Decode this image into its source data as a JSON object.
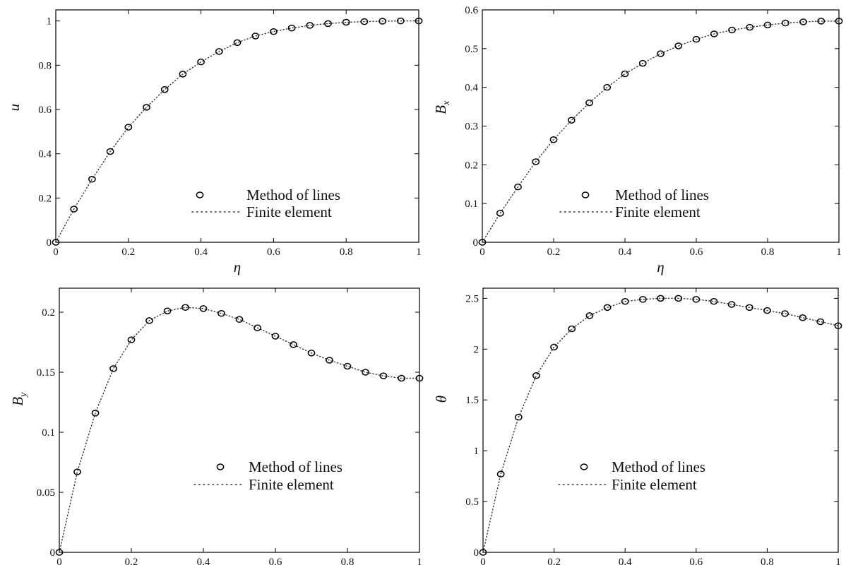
{
  "chart_data": [
    {
      "type": "scatter",
      "panel": "top-left",
      "xlabel": "η",
      "ylabel": "u",
      "xlim": [
        0,
        1
      ],
      "ylim": [
        0,
        1.05
      ],
      "x_ticks": [
        0,
        0.2,
        0.4,
        0.6,
        0.8,
        1
      ],
      "x_tick_labels": [
        "0",
        "0.2",
        "0.4",
        "0.6",
        "0.8",
        "1"
      ],
      "y_ticks": [
        0,
        0.2,
        0.4,
        0.6,
        0.8,
        1
      ],
      "y_tick_labels": [
        "0",
        "0.2",
        "0.4",
        "0.6",
        "0.8",
        "1"
      ],
      "grid": false,
      "legend_position": "bottom-right",
      "series": [
        {
          "name": "Method of lines",
          "marker": "open-circle",
          "x": [
            0,
            0.05,
            0.1,
            0.15,
            0.2,
            0.25,
            0.3,
            0.35,
            0.4,
            0.45,
            0.5,
            0.55,
            0.6,
            0.65,
            0.7,
            0.75,
            0.8,
            0.85,
            0.9,
            0.95,
            1
          ],
          "y": [
            0,
            0.15,
            0.285,
            0.41,
            0.52,
            0.61,
            0.69,
            0.76,
            0.815,
            0.862,
            0.902,
            0.932,
            0.952,
            0.968,
            0.98,
            0.988,
            0.994,
            0.997,
            0.999,
            1.0,
            1.0
          ]
        },
        {
          "name": "Finite element",
          "line": "dotted",
          "x": [
            0,
            0.05,
            0.1,
            0.15,
            0.2,
            0.25,
            0.3,
            0.35,
            0.4,
            0.45,
            0.5,
            0.55,
            0.6,
            0.65,
            0.7,
            0.75,
            0.8,
            0.85,
            0.9,
            0.95,
            1
          ],
          "y": [
            0,
            0.15,
            0.285,
            0.41,
            0.52,
            0.61,
            0.69,
            0.76,
            0.815,
            0.862,
            0.902,
            0.932,
            0.952,
            0.968,
            0.98,
            0.988,
            0.994,
            0.997,
            0.999,
            1.0,
            1.0
          ]
        }
      ]
    },
    {
      "type": "scatter",
      "panel": "top-right",
      "xlabel": "η",
      "ylabel": "Bₓ",
      "xlim": [
        0,
        1
      ],
      "ylim": [
        0,
        0.6
      ],
      "x_ticks": [
        0,
        0.2,
        0.4,
        0.6,
        0.8,
        1
      ],
      "x_tick_labels": [
        "0",
        "0.2",
        "0.4",
        "0.6",
        "0.8",
        "1"
      ],
      "y_ticks": [
        0,
        0.1,
        0.2,
        0.3,
        0.4,
        0.5,
        0.6
      ],
      "y_tick_labels": [
        "0",
        "0.1",
        "0.2",
        "0.3",
        "0.4",
        "0.5",
        "0.6"
      ],
      "grid": false,
      "legend_position": "bottom-right",
      "series": [
        {
          "name": "Method of lines",
          "marker": "open-circle",
          "x": [
            0,
            0.05,
            0.1,
            0.15,
            0.2,
            0.25,
            0.3,
            0.35,
            0.4,
            0.45,
            0.5,
            0.55,
            0.6,
            0.65,
            0.7,
            0.75,
            0.8,
            0.85,
            0.9,
            0.95,
            1
          ],
          "y": [
            0,
            0.075,
            0.143,
            0.208,
            0.265,
            0.315,
            0.36,
            0.4,
            0.435,
            0.462,
            0.487,
            0.507,
            0.524,
            0.538,
            0.548,
            0.555,
            0.561,
            0.566,
            0.569,
            0.571,
            0.571
          ]
        },
        {
          "name": "Finite element",
          "line": "dotted",
          "x": [
            0,
            0.05,
            0.1,
            0.15,
            0.2,
            0.25,
            0.3,
            0.35,
            0.4,
            0.45,
            0.5,
            0.55,
            0.6,
            0.65,
            0.7,
            0.75,
            0.8,
            0.85,
            0.9,
            0.95,
            1
          ],
          "y": [
            0,
            0.075,
            0.143,
            0.208,
            0.265,
            0.315,
            0.36,
            0.4,
            0.435,
            0.462,
            0.487,
            0.507,
            0.524,
            0.538,
            0.548,
            0.555,
            0.561,
            0.566,
            0.569,
            0.571,
            0.571
          ]
        }
      ]
    },
    {
      "type": "scatter",
      "panel": "bottom-left",
      "xlabel": "η",
      "ylabel": "By",
      "xlim": [
        0,
        1
      ],
      "ylim": [
        0,
        0.22
      ],
      "x_ticks": [
        0,
        0.2,
        0.4,
        0.6,
        0.8,
        1
      ],
      "x_tick_labels": [
        "0",
        "0.2",
        "0.4",
        "0.6",
        "0.8",
        "1"
      ],
      "y_ticks": [
        0,
        0.05,
        0.1,
        0.15,
        0.2
      ],
      "y_tick_labels": [
        "0",
        "0.05",
        "0.1",
        "0.15",
        "0.2"
      ],
      "grid": false,
      "legend_position": "bottom-right",
      "series": [
        {
          "name": "Method of lines",
          "marker": "open-circle",
          "x": [
            0,
            0.05,
            0.1,
            0.15,
            0.2,
            0.25,
            0.3,
            0.35,
            0.4,
            0.45,
            0.5,
            0.55,
            0.6,
            0.65,
            0.7,
            0.75,
            0.8,
            0.85,
            0.9,
            0.95,
            1
          ],
          "y": [
            0,
            0.067,
            0.116,
            0.153,
            0.177,
            0.193,
            0.201,
            0.204,
            0.203,
            0.199,
            0.194,
            0.187,
            0.18,
            0.173,
            0.166,
            0.16,
            0.155,
            0.15,
            0.147,
            0.145,
            0.145
          ]
        },
        {
          "name": "Finite element",
          "line": "dotted",
          "x": [
            0,
            0.05,
            0.1,
            0.15,
            0.2,
            0.25,
            0.3,
            0.35,
            0.4,
            0.45,
            0.5,
            0.55,
            0.6,
            0.65,
            0.7,
            0.75,
            0.8,
            0.85,
            0.9,
            0.95,
            1
          ],
          "y": [
            0,
            0.067,
            0.116,
            0.153,
            0.177,
            0.193,
            0.201,
            0.204,
            0.203,
            0.199,
            0.194,
            0.187,
            0.18,
            0.173,
            0.166,
            0.16,
            0.155,
            0.15,
            0.147,
            0.145,
            0.145
          ]
        }
      ]
    },
    {
      "type": "scatter",
      "panel": "bottom-right",
      "xlabel": "η",
      "ylabel": "θ",
      "xlim": [
        0,
        1
      ],
      "ylim": [
        0,
        2.6
      ],
      "x_ticks": [
        0,
        0.2,
        0.4,
        0.6,
        0.8,
        1
      ],
      "x_tick_labels": [
        "0",
        "0.2",
        "0.4",
        "0.6",
        "0.8",
        "1"
      ],
      "y_ticks": [
        0,
        0.5,
        1,
        1.5,
        2,
        2.5
      ],
      "y_tick_labels": [
        "0",
        "0.5",
        "1",
        "1.5",
        "2",
        "2.5"
      ],
      "grid": false,
      "legend_position": "bottom-right",
      "series": [
        {
          "name": "Method of lines",
          "marker": "open-circle",
          "x": [
            0,
            0.05,
            0.1,
            0.15,
            0.2,
            0.25,
            0.3,
            0.35,
            0.4,
            0.45,
            0.5,
            0.55,
            0.6,
            0.65,
            0.7,
            0.75,
            0.8,
            0.85,
            0.9,
            0.95,
            1
          ],
          "y": [
            0,
            0.77,
            1.33,
            1.74,
            2.02,
            2.2,
            2.33,
            2.41,
            2.47,
            2.49,
            2.5,
            2.5,
            2.49,
            2.47,
            2.44,
            2.41,
            2.38,
            2.35,
            2.31,
            2.27,
            2.23
          ]
        },
        {
          "name": "Finite element",
          "line": "dotted",
          "x": [
            0,
            0.05,
            0.1,
            0.15,
            0.2,
            0.25,
            0.3,
            0.35,
            0.4,
            0.45,
            0.5,
            0.55,
            0.6,
            0.65,
            0.7,
            0.75,
            0.8,
            0.85,
            0.9,
            0.95,
            1
          ],
          "y": [
            0,
            0.77,
            1.33,
            1.74,
            2.02,
            2.2,
            2.33,
            2.41,
            2.47,
            2.49,
            2.5,
            2.5,
            2.49,
            2.47,
            2.44,
            2.41,
            2.38,
            2.35,
            2.31,
            2.27,
            2.23
          ]
        }
      ]
    }
  ]
}
